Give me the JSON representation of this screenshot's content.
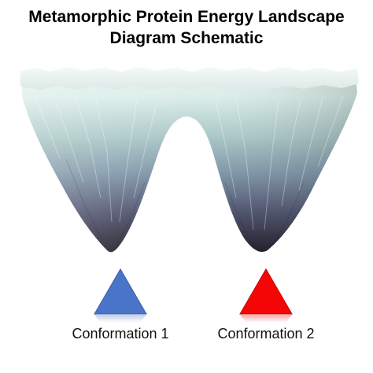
{
  "title": {
    "line1": "Metamorphic Protein Energy Landscape",
    "line2": "Diagram Schematic"
  },
  "conformations": [
    {
      "label": "Conformation 1",
      "color": "#4a74c8",
      "shape": "triangle"
    },
    {
      "label": "Conformation 2",
      "color": "#f40606",
      "shape": "triangle"
    }
  ],
  "landscape": {
    "top_color": "#e4f1ee",
    "mid_color": "#8fb0b4",
    "bottom_color": "#1e1d28"
  }
}
